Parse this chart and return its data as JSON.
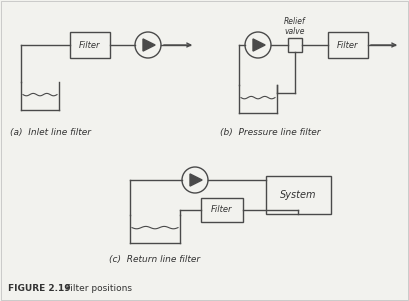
{
  "bg_color": "#f2f2ee",
  "line_color": "#4a4a4a",
  "text_color": "#333333",
  "fig_caption_bold": "FIGURE 2.19",
  "fig_caption_normal": "  Filter positions",
  "label_a": "(a)  Inlet line filter",
  "label_b": "(b)  Pressure line filter",
  "label_c": "(c)  Return line filter",
  "relief_label": "Relief\nvalve",
  "filter_label": "Filter",
  "system_label": "System"
}
